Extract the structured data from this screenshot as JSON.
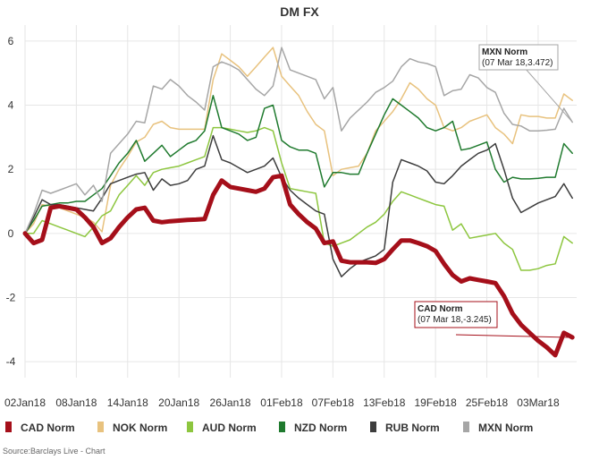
{
  "chart_data": {
    "type": "line",
    "title": "DM FX",
    "xlabel": "",
    "ylabel": "",
    "ylim": [
      -4.5,
      6.5
    ],
    "yticks": [
      -4,
      -2,
      0,
      2,
      4,
      6
    ],
    "x_tick_labels": [
      "02Jan18",
      "08Jan18",
      "14Jan18",
      "20Jan18",
      "26Jan18",
      "01Feb18",
      "07Feb18",
      "13Feb18",
      "19Feb18",
      "25Feb18",
      "03Mar18"
    ],
    "x_tick_days": [
      0,
      6,
      12,
      18,
      24,
      30,
      36,
      42,
      48,
      54,
      60
    ],
    "x_range_days": [
      0,
      64.5
    ],
    "grid": true,
    "legend_position": "bottom",
    "x": [
      0,
      1,
      2,
      3,
      4,
      5,
      6,
      7,
      8,
      9,
      10,
      11,
      12,
      13,
      14,
      15,
      16,
      17,
      18,
      19,
      20,
      21,
      22,
      23,
      24,
      25,
      26,
      27,
      28,
      29,
      30,
      31,
      32,
      33,
      34,
      35,
      36,
      37,
      38,
      39,
      40,
      41,
      42,
      43,
      44,
      45,
      46,
      47,
      48,
      49,
      50,
      51,
      52,
      53,
      54,
      55,
      56,
      57,
      58,
      59,
      60,
      61,
      62,
      63,
      64
    ],
    "series": [
      {
        "name": "CAD Norm",
        "color": "#a50f1a",
        "width": 5,
        "values": [
          0.0,
          -0.3,
          -0.2,
          0.8,
          0.85,
          0.8,
          0.75,
          0.5,
          0.2,
          -0.3,
          -0.15,
          0.2,
          0.5,
          0.75,
          0.8,
          0.4,
          0.35,
          0.38,
          0.4,
          0.42,
          0.43,
          0.45,
          1.2,
          1.65,
          1.45,
          1.4,
          1.35,
          1.3,
          1.4,
          1.75,
          1.8,
          0.9,
          0.6,
          0.35,
          0.15,
          -0.3,
          -0.25,
          -0.85,
          -0.9,
          -0.9,
          -0.9,
          -0.92,
          -0.8,
          -0.5,
          -0.22,
          -0.22,
          -0.3,
          -0.4,
          -0.55,
          -0.95,
          -1.3,
          -1.5,
          -1.4,
          -1.45,
          -1.5,
          -1.55,
          -1.95,
          -2.5,
          -2.85,
          -3.1,
          -3.35,
          -3.55,
          -3.8,
          -3.1,
          -3.245
        ]
      },
      {
        "name": "NOK Norm",
        "color": "#e8c27e",
        "width": 1.5,
        "values": [
          0.0,
          0.3,
          0.9,
          0.85,
          0.8,
          0.7,
          0.6,
          0.5,
          0.35,
          0.05,
          1.5,
          2.0,
          2.4,
          2.85,
          3.0,
          3.4,
          3.5,
          3.3,
          3.25,
          3.25,
          3.25,
          3.25,
          4.8,
          5.6,
          5.4,
          5.2,
          4.9,
          5.2,
          5.5,
          5.8,
          4.9,
          4.6,
          4.3,
          3.8,
          3.4,
          3.2,
          1.8,
          2.0,
          2.05,
          2.1,
          2.5,
          3.2,
          3.5,
          3.8,
          4.2,
          4.7,
          4.5,
          4.2,
          4.0,
          3.3,
          3.2,
          3.3,
          3.5,
          3.6,
          3.7,
          3.3,
          3.1,
          2.8,
          3.7,
          3.65,
          3.65,
          3.6,
          3.6,
          4.35,
          4.15
        ]
      },
      {
        "name": "AUD Norm",
        "color": "#8dc63f",
        "width": 1.5,
        "values": [
          0.0,
          0.0,
          0.4,
          0.3,
          0.2,
          0.1,
          0.0,
          -0.1,
          0.2,
          0.55,
          0.7,
          1.2,
          1.5,
          1.8,
          1.5,
          1.9,
          2.0,
          2.05,
          2.1,
          2.2,
          2.3,
          2.4,
          3.3,
          3.3,
          3.25,
          3.2,
          3.15,
          3.2,
          3.3,
          3.2,
          2.2,
          1.4,
          1.35,
          1.3,
          1.25,
          -0.3,
          -0.4,
          -0.3,
          -0.2,
          0.0,
          0.2,
          0.35,
          0.6,
          1.0,
          1.3,
          1.2,
          1.1,
          1.0,
          0.9,
          0.85,
          0.1,
          0.3,
          -0.15,
          -0.1,
          -0.05,
          0.0,
          -0.3,
          -0.5,
          -1.15,
          -1.15,
          -1.1,
          -1.0,
          -0.95,
          -0.1,
          -0.3
        ]
      },
      {
        "name": "NZD Norm",
        "color": "#1f7a2e",
        "width": 1.5,
        "values": [
          0.0,
          0.4,
          0.85,
          0.9,
          0.95,
          0.95,
          1.0,
          1.0,
          1.2,
          1.4,
          1.8,
          2.2,
          2.5,
          2.9,
          2.25,
          2.5,
          2.75,
          2.4,
          2.6,
          2.8,
          2.9,
          3.2,
          4.3,
          3.3,
          3.2,
          3.1,
          2.9,
          3.0,
          3.9,
          4.0,
          2.9,
          2.7,
          2.6,
          2.6,
          2.5,
          1.45,
          1.9,
          1.9,
          1.85,
          1.85,
          2.5,
          3.1,
          3.7,
          4.2,
          4.0,
          3.8,
          3.6,
          3.3,
          3.2,
          3.3,
          3.5,
          2.6,
          2.65,
          2.75,
          2.85,
          2.0,
          1.6,
          1.75,
          1.7,
          1.7,
          1.72,
          1.75,
          1.75,
          2.8,
          2.5
        ]
      },
      {
        "name": "RUB Norm",
        "color": "#3d3d3d",
        "width": 1.5,
        "values": [
          0.0,
          0.5,
          1.05,
          0.9,
          0.9,
          0.85,
          0.8,
          0.75,
          0.7,
          1.1,
          1.55,
          1.65,
          1.75,
          1.85,
          1.9,
          1.35,
          1.7,
          1.5,
          1.55,
          1.65,
          2.0,
          2.1,
          3.05,
          2.3,
          2.2,
          2.05,
          1.9,
          2.0,
          2.1,
          2.35,
          1.75,
          1.35,
          1.1,
          0.9,
          0.7,
          0.6,
          -0.8,
          -1.35,
          -1.1,
          -0.9,
          -0.8,
          -0.7,
          -0.5,
          1.6,
          2.3,
          2.2,
          2.1,
          1.95,
          1.6,
          1.55,
          1.8,
          2.1,
          2.3,
          2.5,
          2.6,
          2.8,
          2.0,
          1.1,
          0.65,
          0.8,
          0.95,
          1.05,
          1.15,
          1.55,
          1.1
        ]
      },
      {
        "name": "MXN Norm",
        "color": "#a6a6a6",
        "width": 1.5,
        "values": [
          0.0,
          0.6,
          1.35,
          1.25,
          1.35,
          1.45,
          1.55,
          1.2,
          1.5,
          1.0,
          2.5,
          2.8,
          3.1,
          3.5,
          3.45,
          4.6,
          4.5,
          4.8,
          4.6,
          4.3,
          4.1,
          3.85,
          5.2,
          5.35,
          5.25,
          5.1,
          4.8,
          4.5,
          4.3,
          4.6,
          5.8,
          5.1,
          5.0,
          4.9,
          4.8,
          4.2,
          4.55,
          3.2,
          3.6,
          3.85,
          4.1,
          4.4,
          4.55,
          4.75,
          5.2,
          5.45,
          5.35,
          5.3,
          5.2,
          4.3,
          4.45,
          4.5,
          4.95,
          4.85,
          4.55,
          4.4,
          3.75,
          3.4,
          3.35,
          3.2,
          3.2,
          3.22,
          3.25,
          3.9,
          3.472
        ]
      }
    ],
    "tooltips": [
      {
        "series": "MXN Norm",
        "title": "MXN Norm",
        "text": "(07 Mar 18,3.472)"
      },
      {
        "series": "CAD Norm",
        "title": "CAD Norm",
        "text": "(07 Mar 18,-3.245)"
      }
    ]
  },
  "source": "Source:Barclays Live - Chart"
}
